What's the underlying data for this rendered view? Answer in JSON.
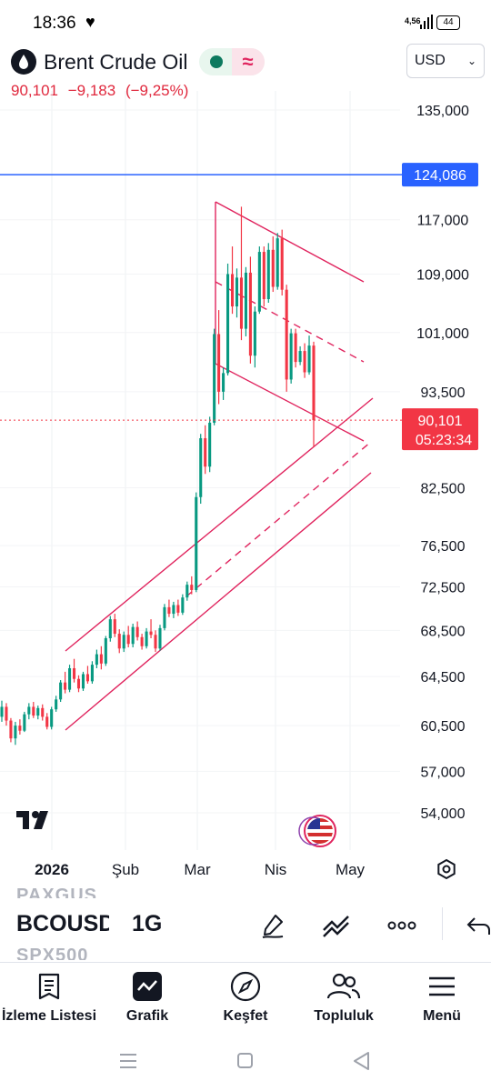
{
  "status_bar": {
    "time": "18:36",
    "network": "4,56",
    "battery": "44"
  },
  "header": {
    "symbol_name": "Brent Crude Oil",
    "currency": "USD",
    "last_price": "90,101",
    "change": "−9,183",
    "change_percent": "(−9,25%)"
  },
  "price_axis": {
    "labels": [
      "135,000",
      "117,000",
      "109,000",
      "101,000",
      "93,500",
      "82,500",
      "76,500",
      "72,500",
      "68,500",
      "64,500",
      "60,500",
      "57,000",
      "54,000"
    ],
    "alert_line_price": "124,086",
    "current_price": "90,101",
    "countdown": "05:23:34"
  },
  "time_axis": {
    "labels": [
      "2026",
      "Şub",
      "Mar",
      "Nis",
      "May"
    ]
  },
  "toolbar": {
    "ghost_prev_symbol": "PAXGUS",
    "symbol": "BCOUSD",
    "interval": "1G",
    "ghost_next_symbol": "SPX500"
  },
  "bottom_nav": {
    "items": [
      {
        "label": "İzleme Listesi",
        "icon": "watchlist-icon"
      },
      {
        "label": "Grafik",
        "icon": "chart-icon"
      },
      {
        "label": "Keşfet",
        "icon": "compass-icon"
      },
      {
        "label": "Topluluk",
        "icon": "community-icon"
      },
      {
        "label": "Menü",
        "icon": "menu-icon"
      }
    ]
  },
  "colors": {
    "up": "#089981",
    "down": "#f23645",
    "drawing": "#e0245e",
    "alert_line": "#2962ff",
    "price_tag": "#f23645"
  },
  "chart_data": {
    "type": "candlestick",
    "symbol": "BCOUSD",
    "interval": "1G",
    "x_labels": [
      "2026",
      "Şub",
      "Mar",
      "Nis",
      "May"
    ],
    "y_ticks": [
      135,
      117,
      109,
      101,
      93.5,
      82.5,
      76.5,
      72.5,
      68.5,
      64.5,
      60.5,
      57,
      54
    ],
    "y_scale": "log",
    "last_price": 90.101,
    "alert_line": 124.086,
    "series": [
      {
        "values": [
          [
            61.2,
            62.5,
            60.8,
            62.0
          ],
          [
            62.0,
            62.3,
            60.5,
            60.9
          ],
          [
            60.9,
            61.1,
            59.2,
            59.5
          ],
          [
            59.5,
            60.8,
            59.0,
            60.5
          ],
          [
            60.5,
            61.0,
            59.8,
            60.1
          ],
          [
            60.1,
            61.6,
            60.0,
            61.4
          ],
          [
            61.4,
            62.3,
            61.0,
            62.0
          ],
          [
            62.0,
            62.4,
            61.1,
            61.3
          ],
          [
            61.3,
            62.1,
            61.0,
            61.9
          ],
          [
            61.9,
            62.2,
            60.9,
            61.2
          ],
          [
            61.2,
            61.5,
            60.2,
            60.4
          ],
          [
            60.4,
            62.0,
            60.2,
            61.8
          ],
          [
            61.8,
            62.9,
            61.6,
            62.6
          ],
          [
            62.6,
            64.2,
            62.4,
            64.0
          ],
          [
            64.0,
            64.9,
            63.1,
            63.4
          ],
          [
            63.4,
            65.5,
            63.2,
            65.2
          ],
          [
            65.2,
            66.0,
            64.0,
            64.3
          ],
          [
            64.3,
            64.6,
            63.2,
            63.5
          ],
          [
            63.5,
            64.9,
            63.3,
            64.7
          ],
          [
            64.7,
            65.4,
            63.9,
            64.1
          ],
          [
            64.1,
            65.8,
            63.9,
            65.5
          ],
          [
            65.5,
            66.8,
            65.2,
            66.4
          ],
          [
            66.4,
            67.1,
            65.1,
            65.6
          ],
          [
            65.6,
            68.0,
            65.4,
            67.8
          ],
          [
            67.8,
            69.8,
            67.5,
            69.5
          ],
          [
            69.5,
            70.0,
            67.9,
            68.2
          ],
          [
            68.2,
            68.6,
            66.5,
            66.9
          ],
          [
            66.9,
            68.4,
            66.6,
            68.1
          ],
          [
            68.1,
            68.9,
            67.0,
            67.3
          ],
          [
            67.3,
            69.1,
            67.0,
            68.8
          ],
          [
            68.8,
            69.3,
            67.6,
            67.9
          ],
          [
            67.9,
            68.2,
            66.8,
            67.1
          ],
          [
            67.1,
            68.7,
            66.9,
            68.4
          ],
          [
            68.4,
            69.5,
            67.8,
            68.1
          ],
          [
            68.1,
            68.5,
            66.6,
            66.9
          ],
          [
            66.9,
            69.0,
            66.7,
            68.7
          ],
          [
            68.7,
            70.9,
            68.5,
            70.6
          ],
          [
            70.6,
            71.3,
            69.7,
            70.0
          ],
          [
            70.0,
            71.1,
            69.6,
            70.8
          ],
          [
            70.8,
            71.3,
            69.8,
            70.1
          ],
          [
            70.1,
            71.8,
            69.9,
            71.5
          ],
          [
            71.5,
            73.0,
            71.2,
            72.7
          ],
          [
            72.7,
            73.5,
            71.8,
            72.2
          ],
          [
            72.2,
            82.0,
            72.0,
            81.5
          ],
          [
            81.5,
            88.5,
            80.8,
            88.0
          ],
          [
            88.0,
            89.5,
            84.0,
            84.8
          ],
          [
            84.8,
            90.5,
            84.2,
            89.8
          ],
          [
            89.8,
            101.5,
            89.5,
            100.8
          ],
          [
            100.8,
            104.0,
            92.0,
            93.5
          ],
          [
            93.5,
            96.5,
            92.5,
            95.8
          ],
          [
            95.8,
            110.5,
            95.5,
            109.0
          ],
          [
            109.0,
            113.0,
            103.5,
            104.5
          ],
          [
            104.5,
            109.8,
            103.0,
            108.5
          ],
          [
            108.5,
            119.0,
            100.0,
            101.5
          ],
          [
            101.5,
            110.0,
            100.5,
            109.2
          ],
          [
            109.2,
            111.5,
            97.0,
            98.0
          ],
          [
            98.0,
            104.5,
            96.5,
            103.8
          ],
          [
            103.8,
            113.0,
            103.5,
            112.2
          ],
          [
            112.2,
            113.0,
            104.5,
            105.5
          ],
          [
            105.5,
            113.5,
            105.0,
            112.5
          ],
          [
            112.5,
            114.5,
            106.5,
            107.2
          ],
          [
            107.2,
            115.0,
            106.8,
            114.2
          ],
          [
            114.2,
            115.5,
            106.0,
            106.8
          ],
          [
            106.8,
            107.5,
            93.5,
            95.0
          ],
          [
            95.0,
            101.5,
            94.5,
            100.9
          ],
          [
            100.9,
            101.5,
            96.5,
            97.2
          ],
          [
            97.2,
            99.2,
            96.8,
            98.6
          ],
          [
            98.6,
            99.6,
            95.2,
            95.9
          ],
          [
            95.9,
            100.6,
            95.6,
            99.3
          ],
          [
            99.3,
            99.8,
            87.0,
            90.101
          ]
        ]
      }
    ]
  }
}
